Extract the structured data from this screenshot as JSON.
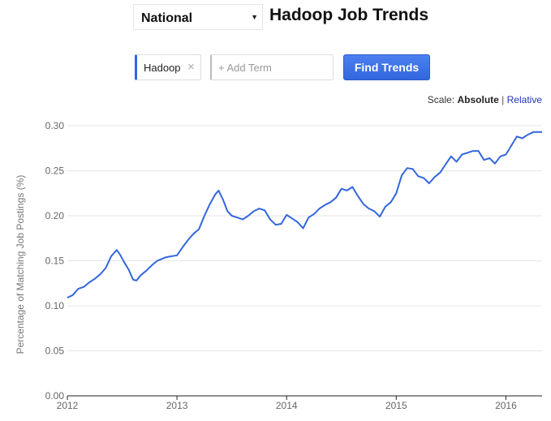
{
  "location_select": {
    "value": "National"
  },
  "page_title": "Hadoop Job Trends",
  "terms": [
    {
      "label": "Hadoop",
      "remove": "×"
    }
  ],
  "add_term": {
    "placeholder": "+ Add Term",
    "value": ""
  },
  "find_button": {
    "label": "Find Trends"
  },
  "scale": {
    "label": "Scale:",
    "selected": "Absolute",
    "separator": "|",
    "alternative": "Relative"
  },
  "chart_data": {
    "type": "line",
    "title": "",
    "xlabel": "",
    "ylabel": "Percentage of Matching Job Postings (%)",
    "ylim": [
      0,
      0.3
    ],
    "xlim": [
      2012.0,
      2016.33
    ],
    "y_ticks": [
      0.0,
      0.05,
      0.1,
      0.15,
      0.2,
      0.25,
      0.3
    ],
    "y_tick_labels": [
      "0.00",
      "0.05",
      "0.10",
      "0.15",
      "0.20",
      "0.25",
      "0.30"
    ],
    "x_ticks": [
      2012,
      2013,
      2014,
      2015,
      2016
    ],
    "x_tick_labels": [
      "2012",
      "2013",
      "2014",
      "2015",
      "2016"
    ],
    "grid": true,
    "line_color": "#3366dd",
    "series": [
      {
        "name": "Hadoop",
        "x": [
          2012.0,
          2012.05,
          2012.1,
          2012.15,
          2012.2,
          2012.25,
          2012.3,
          2012.35,
          2012.4,
          2012.45,
          2012.48,
          2012.52,
          2012.56,
          2012.6,
          2012.63,
          2012.67,
          2012.72,
          2012.78,
          2012.82,
          2012.86,
          2012.9,
          2012.95,
          2013.0,
          2013.05,
          2013.1,
          2013.15,
          2013.2,
          2013.25,
          2013.3,
          2013.35,
          2013.38,
          2013.42,
          2013.46,
          2013.5,
          2013.55,
          2013.6,
          2013.65,
          2013.7,
          2013.75,
          2013.8,
          2013.85,
          2013.9,
          2013.95,
          2014.0,
          2014.05,
          2014.1,
          2014.15,
          2014.2,
          2014.25,
          2014.3,
          2014.35,
          2014.4,
          2014.45,
          2014.5,
          2014.55,
          2014.6,
          2014.65,
          2014.7,
          2014.75,
          2014.8,
          2014.85,
          2014.9,
          2014.95,
          2015.0,
          2015.05,
          2015.1,
          2015.15,
          2015.2,
          2015.25,
          2015.3,
          2015.35,
          2015.4,
          2015.45,
          2015.5,
          2015.55,
          2015.6,
          2015.65,
          2015.7,
          2015.75,
          2015.8,
          2015.85,
          2015.9,
          2015.95,
          2016.0,
          2016.05,
          2016.1,
          2016.15,
          2016.2,
          2016.25,
          2016.33
        ],
        "y": [
          0.109,
          0.112,
          0.119,
          0.121,
          0.126,
          0.13,
          0.135,
          0.142,
          0.155,
          0.162,
          0.157,
          0.148,
          0.14,
          0.129,
          0.128,
          0.134,
          0.139,
          0.146,
          0.15,
          0.152,
          0.154,
          0.155,
          0.156,
          0.165,
          0.173,
          0.18,
          0.185,
          0.2,
          0.213,
          0.224,
          0.228,
          0.218,
          0.205,
          0.2,
          0.198,
          0.196,
          0.2,
          0.205,
          0.208,
          0.206,
          0.196,
          0.19,
          0.191,
          0.201,
          0.197,
          0.193,
          0.186,
          0.198,
          0.202,
          0.208,
          0.212,
          0.215,
          0.22,
          0.23,
          0.228,
          0.232,
          0.222,
          0.213,
          0.208,
          0.205,
          0.199,
          0.21,
          0.215,
          0.225,
          0.245,
          0.253,
          0.252,
          0.244,
          0.242,
          0.236,
          0.243,
          0.248,
          0.257,
          0.266,
          0.26,
          0.268,
          0.27,
          0.272,
          0.272,
          0.262,
          0.264,
          0.258,
          0.266,
          0.268,
          0.278,
          0.288,
          0.286,
          0.29,
          0.293,
          0.293
        ]
      }
    ]
  }
}
